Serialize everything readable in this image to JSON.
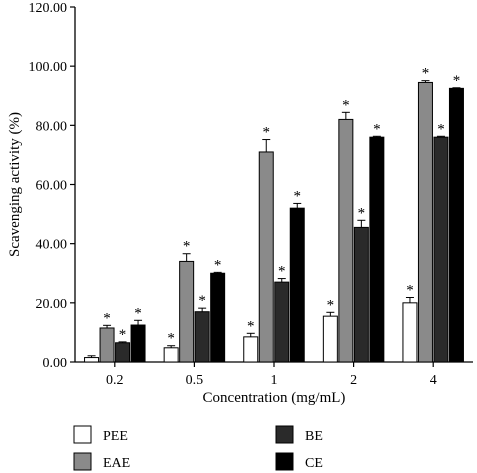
{
  "chart_data": {
    "type": "bar",
    "xlabel": "Concentration (mg/mL)",
    "ylabel": "Scavenging activity (%)",
    "ylim": [
      0,
      120
    ],
    "yticks": [
      "0.00",
      "20.00",
      "40.00",
      "60.00",
      "80.00",
      "100.00",
      "120.00"
    ],
    "categories": [
      "0.2",
      "0.5",
      "1",
      "2",
      "4"
    ],
    "legend_position": "bottom",
    "significance_marker": "*",
    "series": [
      {
        "name": "PEE",
        "color": "#ffffff",
        "values": [
          1.5,
          4.8,
          8.5,
          15.5,
          20.0
        ],
        "errors": [
          0.6,
          0.7,
          1.2,
          1.3,
          1.8
        ],
        "significant": [
          false,
          true,
          true,
          true,
          true
        ]
      },
      {
        "name": "EAE",
        "color": "#8a8a8a",
        "values": [
          11.5,
          34.0,
          71.0,
          82.0,
          94.5
        ],
        "errors": [
          0.9,
          2.6,
          4.2,
          2.4,
          0.6
        ],
        "significant": [
          true,
          true,
          true,
          true,
          true
        ]
      },
      {
        "name": "BE",
        "color": "#2a2a2a",
        "values": [
          6.5,
          17.0,
          27.0,
          45.5,
          76.0
        ],
        "errors": [
          0.3,
          1.2,
          1.2,
          2.4,
          0.3
        ],
        "significant": [
          true,
          true,
          true,
          true,
          true
        ]
      },
      {
        "name": "CE",
        "color": "#000000",
        "values": [
          12.5,
          30.0,
          52.0,
          76.0,
          92.5
        ],
        "errors": [
          1.6,
          0.3,
          1.6,
          0.3,
          0.2
        ],
        "significant": [
          true,
          true,
          true,
          true,
          true
        ]
      }
    ]
  }
}
